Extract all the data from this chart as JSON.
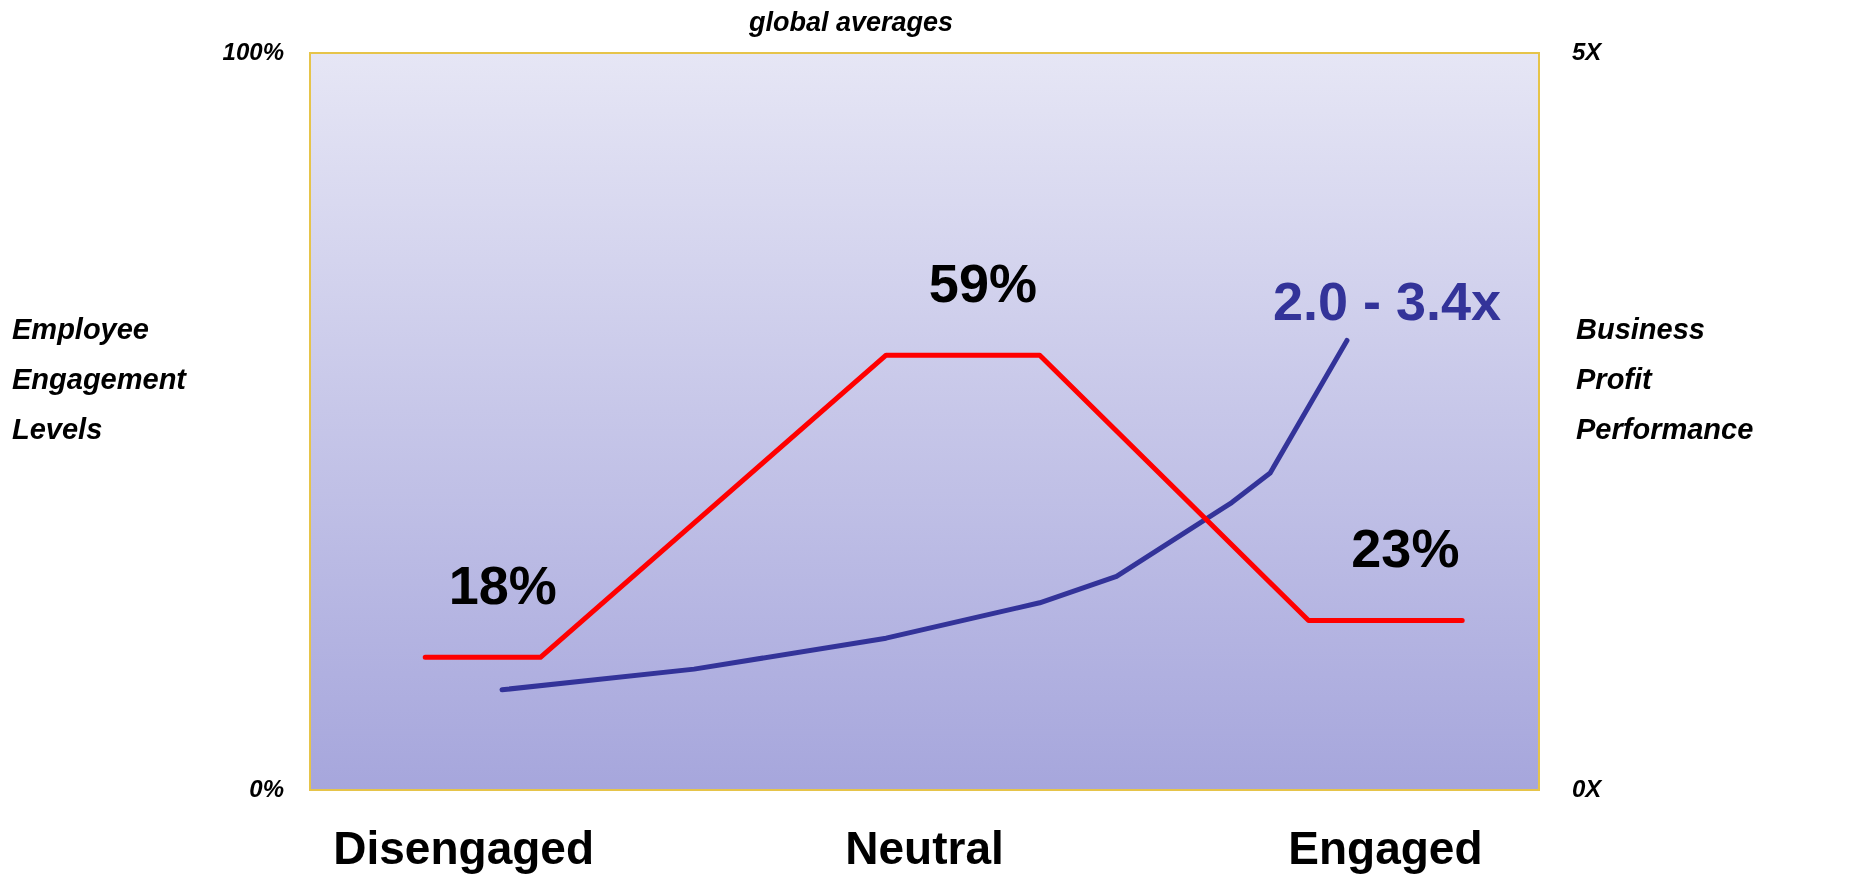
{
  "chart_data": {
    "type": "line",
    "title": "global averages",
    "ylabel": "Employee Engagement Levels",
    "y2label": "Business Profit Performance",
    "categories": [
      null,
      null,
      null,
      null,
      "Disengaged",
      null,
      null,
      null,
      null,
      null,
      null,
      null,
      null,
      null,
      null,
      null,
      "Neutral",
      null,
      null,
      null,
      null,
      null,
      null,
      null,
      null,
      null,
      null,
      null,
      "Engaged",
      null,
      null,
      null,
      null
    ],
    "ylim": [
      0,
      100
    ],
    "yticks": [
      {
        "value": 0,
        "label": "0%"
      },
      {
        "value": 100,
        "label": "100%"
      }
    ],
    "y2lim": [
      0,
      5
    ],
    "y2ticks": [
      {
        "value": 0,
        "label": "0X"
      },
      {
        "value": 5,
        "label": "5X"
      }
    ],
    "legend": false,
    "marker": "none",
    "line_style": "solid",
    "series": [
      {
        "color": "#ff0000",
        "values": [
          null,
          null,
          null,
          18,
          null,
          null,
          18,
          null,
          null,
          null,
          null,
          null,
          null,
          null,
          null,
          59,
          null,
          null,
          null,
          59,
          null,
          null,
          null,
          null,
          null,
          null,
          23,
          null,
          null,
          null,
          23,
          null,
          null
        ],
        "value_labels": [
          null,
          null,
          null,
          "18%",
          null,
          null,
          null,
          null,
          null,
          null,
          null,
          null,
          null,
          null,
          null,
          "59%",
          null,
          null,
          null,
          null,
          null,
          null,
          null,
          null,
          null,
          null,
          "23%",
          null,
          null,
          null,
          null,
          null,
          null
        ]
      },
      {
        "color": "#333399",
        "axis": "y2",
        "values": [
          null,
          null,
          null,
          null,
          null,
          0.68,
          null,
          null,
          null,
          null,
          0.82,
          null,
          null,
          null,
          null,
          1.03,
          null,
          null,
          null,
          1.27,
          null,
          1.45,
          null,
          null,
          1.95,
          2.15,
          2.6,
          3.05,
          null,
          null,
          null,
          null,
          null
        ]
      }
    ],
    "annotations": [
      "2.0 - 3.4x"
    ]
  }
}
